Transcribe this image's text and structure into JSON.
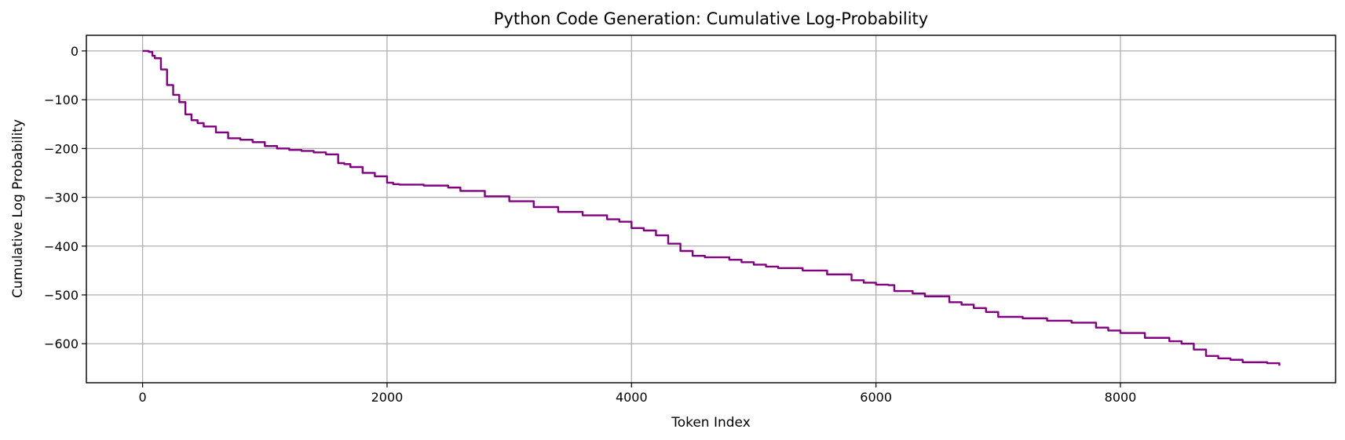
{
  "chart_data": {
    "type": "line",
    "title": "Python Code Generation: Cumulative Log-Probability",
    "xlabel": "Token Index",
    "ylabel": "Cumulative Log Probability",
    "xlim": [
      -460,
      9760
    ],
    "ylim": [
      -680,
      32
    ],
    "xticks": [
      0,
      2000,
      4000,
      6000,
      8000
    ],
    "yticks": [
      0,
      -100,
      -200,
      -300,
      -400,
      -500,
      -600
    ],
    "grid": true,
    "line_color": "#800080",
    "series": [
      {
        "x": [
          0,
          50,
          80,
          100,
          150,
          200,
          250,
          300,
          350,
          400,
          450,
          500,
          600,
          700,
          800,
          900,
          1000,
          1100,
          1200,
          1300,
          1400,
          1500,
          1600,
          1650,
          1700,
          1800,
          1900,
          2000,
          2050,
          2100,
          2300,
          2500,
          2600,
          2800,
          3000,
          3200,
          3400,
          3600,
          3800,
          3900,
          4000,
          4100,
          4200,
          4300,
          4400,
          4500,
          4600,
          4800,
          4900,
          5000,
          5100,
          5200,
          5400,
          5600,
          5800,
          5900,
          6000,
          6100,
          6150,
          6300,
          6400,
          6600,
          6700,
          6800,
          6900,
          7000,
          7200,
          7400,
          7600,
          7800,
          7900,
          8000,
          8200,
          8400,
          8500,
          8600,
          8700,
          8800,
          8900,
          9000,
          9200,
          9300
        ],
        "y": [
          0,
          -2,
          -10,
          -15,
          -38,
          -70,
          -90,
          -105,
          -130,
          -142,
          -148,
          -155,
          -167,
          -179,
          -182,
          -187,
          -195,
          -200,
          -203,
          -205,
          -208,
          -212,
          -230,
          -232,
          -238,
          -250,
          -257,
          -270,
          -273,
          -274,
          -276,
          -280,
          -287,
          -298,
          -308,
          -320,
          -330,
          -337,
          -345,
          -350,
          -363,
          -368,
          -378,
          -395,
          -410,
          -420,
          -423,
          -428,
          -433,
          -438,
          -442,
          -445,
          -450,
          -458,
          -470,
          -475,
          -479,
          -480,
          -492,
          -497,
          -503,
          -515,
          -520,
          -527,
          -535,
          -545,
          -548,
          -553,
          -557,
          -567,
          -573,
          -578,
          -588,
          -595,
          -600,
          -612,
          -625,
          -630,
          -633,
          -638,
          -640,
          -645
        ]
      }
    ]
  }
}
